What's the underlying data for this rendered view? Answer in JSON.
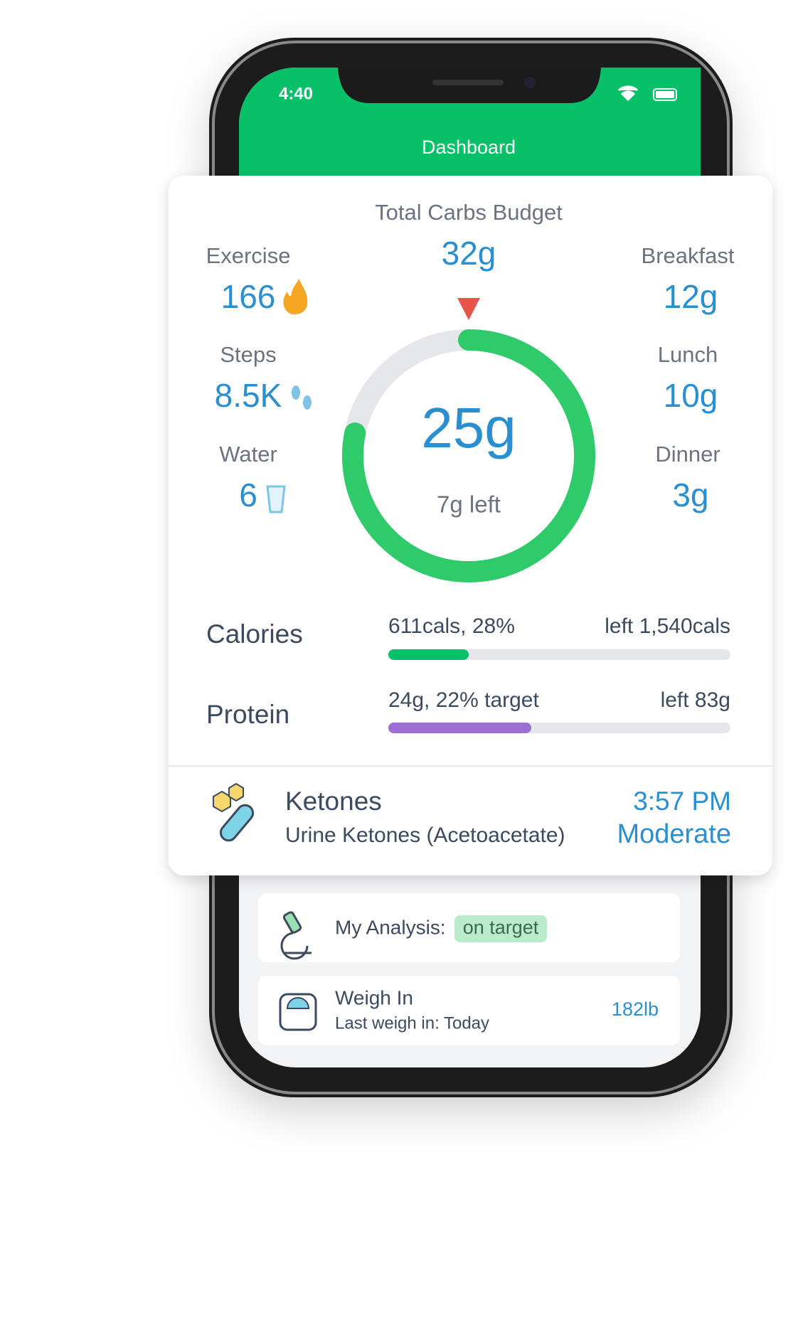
{
  "status_bar": {
    "time": "4:40"
  },
  "header": {
    "title": "Dashboard"
  },
  "summary": {
    "budget_label": "Total Carbs Budget",
    "budget_value": "32g",
    "consumed": "25g",
    "remaining": "7g left",
    "activity": [
      {
        "label": "Exercise",
        "value": "166"
      },
      {
        "label": "Steps",
        "value": "8.5K"
      },
      {
        "label": "Water",
        "value": "6"
      }
    ],
    "meals": [
      {
        "label": "Breakfast",
        "value": "12g"
      },
      {
        "label": "Lunch",
        "value": "10g"
      },
      {
        "label": "Dinner",
        "value": "3g"
      }
    ]
  },
  "nutrients": [
    {
      "label": "Calories",
      "consumed": "611cals, 28%",
      "left": "left 1,540cals"
    },
    {
      "label": "Protein",
      "consumed": "24g, 22% target",
      "left": "left 83g"
    }
  ],
  "ketones": {
    "title": "Ketones",
    "subtitle": "Urine Ketones (Acetoacetate)",
    "time": "3:57 PM",
    "level": "Moderate"
  },
  "cards": [
    {
      "title": "My Analysis:",
      "badge": "on target"
    },
    {
      "title": "Weigh In",
      "subtitle": "Last weigh in: Today",
      "value": "182lb"
    }
  ]
}
